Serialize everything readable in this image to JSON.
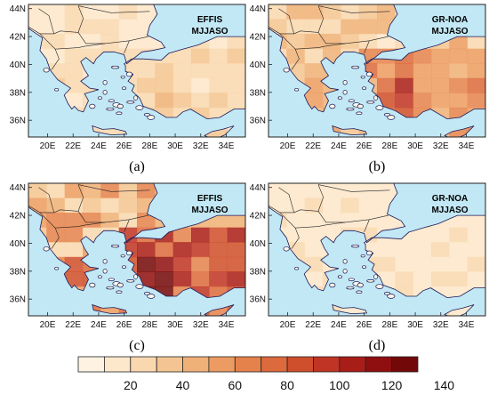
{
  "colors": {
    "sea": "#c2e8f5",
    "land": "#fdf7e8",
    "frame": "#222222",
    "colorbar": [
      "#fef3e3",
      "#fde8cc",
      "#f9d8b0",
      "#f4c592",
      "#f0b178",
      "#ec9c62",
      "#e5824c",
      "#dc6a3c",
      "#cf4f2c",
      "#bf3424",
      "#a91d18",
      "#8f0e10",
      "#720808"
    ]
  },
  "legend": {
    "ticks": [
      "20",
      "40",
      "60",
      "80",
      "100",
      "120",
      "140"
    ]
  },
  "axes": {
    "lat_ticks": [
      "44N",
      "42N",
      "40N",
      "38N",
      "36N"
    ],
    "lon_ticks": [
      "20E",
      "22E",
      "24E",
      "26E",
      "28E",
      "30E",
      "32E",
      "34E"
    ]
  },
  "panels": [
    {
      "id": "a",
      "letter": "(a)",
      "source": "EFFIS",
      "period": "MJJASO",
      "intensity": 0.28
    },
    {
      "id": "b",
      "letter": "(b)",
      "source": "GR-NOA",
      "period": "MJJASO",
      "intensity": 0.55
    },
    {
      "id": "c",
      "letter": "(c)",
      "source": "EFFIS",
      "period": "MJJASO",
      "intensity": 0.72
    },
    {
      "id": "d",
      "letter": "(d)",
      "source": "GR-NOA",
      "period": "MJJASO",
      "intensity": 0.2
    }
  ]
}
